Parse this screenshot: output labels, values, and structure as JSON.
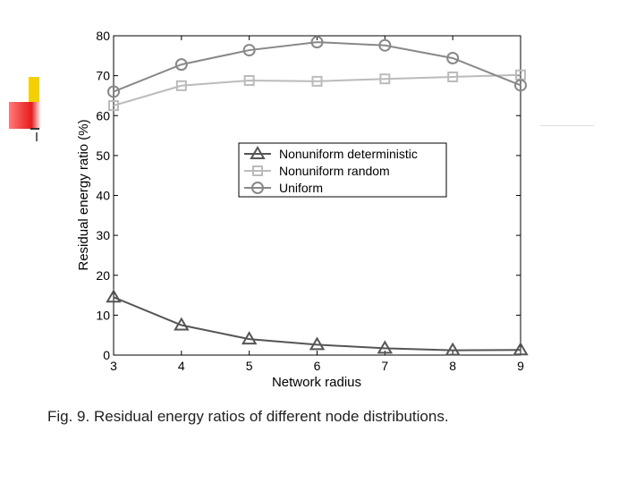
{
  "colors": {
    "background": "#ffffff",
    "axis": "#000000",
    "nonuniform_deterministic": "#555555",
    "nonuniform_random": "#bbbbbb",
    "uniform": "#888888",
    "deco_yellow": "#f5d000",
    "deco_red": "#e81a1a"
  },
  "chart_data": {
    "type": "line",
    "title": "",
    "xlabel": "Network radius",
    "ylabel": "Residual energy ratio (%)",
    "x": [
      3,
      4,
      5,
      6,
      7,
      8,
      9
    ],
    "xlim": [
      3,
      9
    ],
    "ylim": [
      0,
      80
    ],
    "xticks": [
      "3",
      "4",
      "5",
      "6",
      "7",
      "8",
      "9"
    ],
    "yticks": [
      "0",
      "10",
      "20",
      "30",
      "40",
      "50",
      "60",
      "70",
      "80"
    ],
    "legend_position": "center",
    "grid": false,
    "series": [
      {
        "name": "Nonuniform deterministic",
        "marker": "triangle",
        "color": "#555555",
        "values": [
          14.5,
          7.5,
          4.0,
          2.6,
          1.7,
          1.2,
          1.3
        ]
      },
      {
        "name": "Nonuniform random",
        "marker": "square",
        "color": "#bbbbbb",
        "values": [
          62.5,
          67.5,
          68.8,
          68.6,
          69.2,
          69.7,
          70.2
        ]
      },
      {
        "name": "Uniform",
        "marker": "circle",
        "color": "#888888",
        "values": [
          66.0,
          72.8,
          76.4,
          78.4,
          77.6,
          74.4,
          67.6
        ]
      }
    ]
  },
  "caption": "Fig. 9. Residual energy ratios of different node distributions."
}
